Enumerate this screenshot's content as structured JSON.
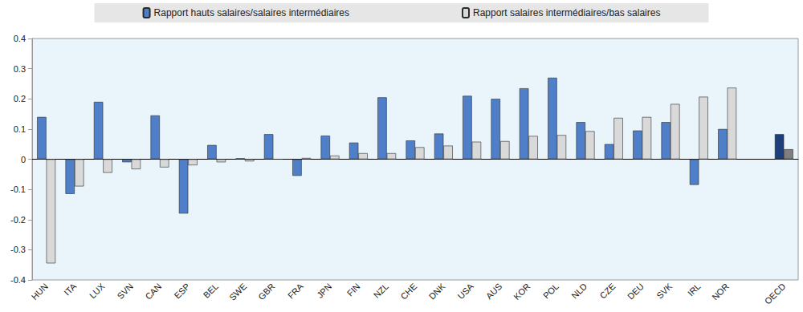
{
  "chart_data": {
    "type": "bar",
    "categories": [
      "HUN",
      "ITA",
      "LUX",
      "SVN",
      "CAN",
      "ESP",
      "BEL",
      "SWE",
      "GBR",
      "FRA",
      "JPN",
      "FIN",
      "NZL",
      "CHE",
      "DNK",
      "USA",
      "AUS",
      "KOR",
      "POL",
      "NLD",
      "CZE",
      "DEU",
      "SVK",
      "IRL",
      "NOR",
      null,
      "OECD"
    ],
    "series": [
      {
        "name": "Rapport hauts salaires/salaires intermédiaires",
        "color": "#4e7fc8",
        "colors": [
          "#4e7fc8",
          "#4e7fc8",
          "#4e7fc8",
          "#4e7fc8",
          "#4e7fc8",
          "#4e7fc8",
          "#4e7fc8",
          "#4e7fc8",
          "#4e7fc8",
          "#4e7fc8",
          "#4e7fc8",
          "#4e7fc8",
          "#4e7fc8",
          "#4e7fc8",
          "#4e7fc8",
          "#4e7fc8",
          "#4e7fc8",
          "#4e7fc8",
          "#4e7fc8",
          "#4e7fc8",
          "#4e7fc8",
          "#4e7fc8",
          "#4e7fc8",
          "#4e7fc8",
          "#4e7fc8",
          "#4e7fc8",
          "#1f3f7a"
        ],
        "values": [
          0.14,
          -0.115,
          0.19,
          -0.01,
          0.145,
          -0.18,
          0.047,
          0.003,
          0.083,
          -0.055,
          0.078,
          0.055,
          0.205,
          0.062,
          0.085,
          0.21,
          0.2,
          0.235,
          0.27,
          0.123,
          0.05,
          0.095,
          0.123,
          -0.085,
          0.1,
          null,
          0.083
        ]
      },
      {
        "name": "Rapport salaires intermédiaires/bas salaires",
        "color": "#d9d9d9",
        "colors": [
          "#d9d9d9",
          "#d9d9d9",
          "#d9d9d9",
          "#d9d9d9",
          "#d9d9d9",
          "#d9d9d9",
          "#d9d9d9",
          "#d9d9d9",
          "#d9d9d9",
          "#d9d9d9",
          "#d9d9d9",
          "#d9d9d9",
          "#d9d9d9",
          "#d9d9d9",
          "#d9d9d9",
          "#d9d9d9",
          "#d9d9d9",
          "#d9d9d9",
          "#d9d9d9",
          "#d9d9d9",
          "#d9d9d9",
          "#d9d9d9",
          "#d9d9d9",
          "#d9d9d9",
          "#d9d9d9",
          "#d9d9d9",
          "#7f7f7f"
        ],
        "values": [
          -0.345,
          -0.09,
          -0.045,
          -0.033,
          -0.027,
          -0.02,
          -0.01,
          -0.007,
          0.0,
          0.004,
          0.012,
          0.02,
          0.02,
          0.04,
          0.045,
          0.058,
          0.06,
          0.077,
          0.08,
          0.093,
          0.137,
          0.14,
          0.183,
          0.207,
          0.237,
          null,
          0.033
        ]
      }
    ],
    "ylim": [
      -0.4,
      0.4
    ],
    "yticks": [
      -0.4,
      -0.3,
      -0.2,
      -0.1,
      0,
      0.1,
      0.2,
      0.3,
      0.4
    ],
    "grid": false,
    "legend": "top"
  }
}
